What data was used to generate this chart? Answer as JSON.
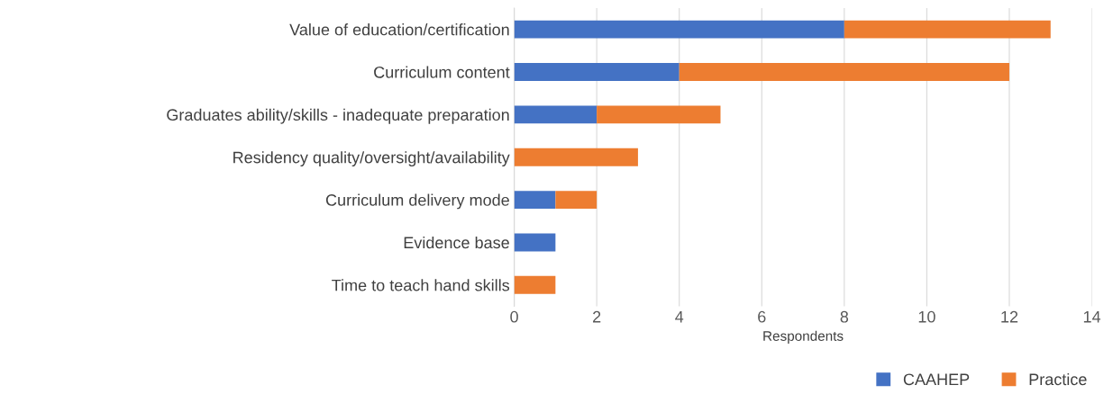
{
  "chart_data": {
    "type": "bar",
    "orientation": "horizontal",
    "stacked": true,
    "xlabel": "Respondents",
    "categories": [
      "Value of education/certification",
      "Curriculum content",
      "Graduates ability/skills - inadequate preparation",
      "Residency quality/oversight/availability",
      "Curriculum delivery mode",
      "Evidence base",
      "Time to teach hand skills"
    ],
    "series": [
      {
        "name": "CAAHEP",
        "color": "#4472c4",
        "values": [
          8,
          4,
          2,
          0,
          1,
          1,
          0
        ]
      },
      {
        "name": "Practice",
        "color": "#ed7d31",
        "values": [
          5,
          8,
          3,
          3,
          1,
          0,
          1
        ]
      }
    ],
    "xlim": [
      0,
      14
    ],
    "xticks": [
      0,
      2,
      4,
      6,
      8,
      10,
      12,
      14
    ],
    "grid": "x",
    "legend": "bottom right"
  }
}
